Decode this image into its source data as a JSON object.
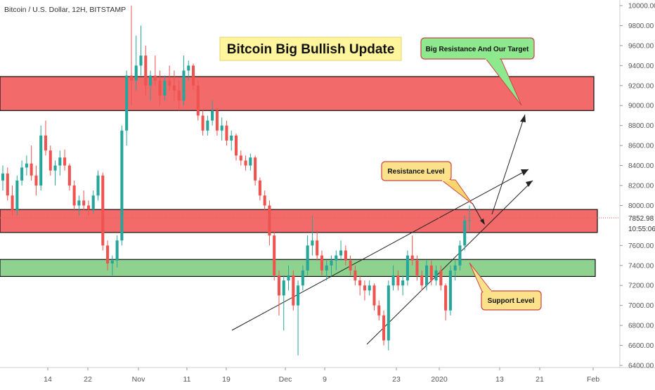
{
  "header": {
    "symbol_line": "Bitcoin / U.S. Dollar, 12H, BITSTAMP"
  },
  "colors": {
    "up": "#26a69a",
    "down": "#ef5350",
    "resistance_zone_fill": "#f36a6a",
    "support_zone_fill": "#8fd18f",
    "title_box_fill": "#fff59d",
    "callout_red_fill": "#f8d56e",
    "callout_green_fill": "#8ee88e",
    "price_tag": "#ef5350",
    "axis_text": "#555555"
  },
  "annotations": {
    "title": "Bitcoin Big Bullish Update",
    "target_callout": "Big Resistance And Our Target",
    "resistance_callout": "Resistance Level",
    "support_callout": "Support Level"
  },
  "price_axis": {
    "ticks": [
      "10000.00",
      "9800.00",
      "9600.00",
      "9400.00",
      "9200.00",
      "9000.00",
      "8800.00",
      "8600.00",
      "8400.00",
      "8200.00",
      "8000.00",
      "7600.00",
      "7400.00",
      "7200.00",
      "7000.00",
      "6800.00",
      "6600.00",
      "6400.00"
    ],
    "last_price": "7852.98",
    "countdown": "10:55:06"
  },
  "time_axis": {
    "ticks": [
      "14",
      "22",
      "Nov",
      "11",
      "19",
      "Dec",
      "9",
      "23",
      "2020",
      "13",
      "21",
      "Feb"
    ]
  },
  "chart_data": {
    "type": "candlestick",
    "title": "Bitcoin Big Bullish Update",
    "symbol": "Bitcoin / U.S. Dollar, 12H, BITSTAMP",
    "ylim": [
      6300,
      10100
    ],
    "y_ticks": [
      10000,
      9800,
      9600,
      9400,
      9200,
      9000,
      8800,
      8600,
      8400,
      8200,
      8000,
      7600,
      7400,
      7200,
      7000,
      6800,
      6600,
      6400
    ],
    "x_tick_labels": [
      "14",
      "22",
      "Nov",
      "11",
      "19",
      "Dec",
      "9",
      "23",
      "2020",
      "13",
      "21",
      "Feb"
    ],
    "last_price": 7852.98,
    "zones": [
      {
        "kind": "resistance",
        "from": 8950,
        "to": 9290
      },
      {
        "kind": "resistance",
        "from": 7730,
        "to": 7960
      },
      {
        "kind": "support",
        "from": 7290,
        "to": 7460
      }
    ],
    "candles": [
      [
        8250,
        8400,
        8150,
        8320
      ],
      [
        8320,
        8380,
        8050,
        8100
      ],
      [
        8100,
        8200,
        7900,
        7950
      ],
      [
        7950,
        8300,
        7900,
        8250
      ],
      [
        8250,
        8450,
        8200,
        8380
      ],
      [
        8380,
        8500,
        8300,
        8420
      ],
      [
        8420,
        8600,
        8250,
        8300
      ],
      [
        8300,
        8400,
        8100,
        8200
      ],
      [
        8200,
        8800,
        8150,
        8700
      ],
      [
        8700,
        8850,
        8500,
        8550
      ],
      [
        8550,
        8600,
        8300,
        8350
      ],
      [
        8350,
        8450,
        8200,
        8400
      ],
      [
        8400,
        8550,
        8300,
        8480
      ],
      [
        8480,
        8560,
        8350,
        8400
      ],
      [
        8400,
        8420,
        8150,
        8200
      ],
      [
        8200,
        8250,
        7950,
        8000
      ],
      [
        8000,
        8100,
        7900,
        8050
      ],
      [
        8050,
        8150,
        7950,
        8000
      ],
      [
        8000,
        8050,
        7900,
        7960
      ],
      [
        7960,
        8150,
        7920,
        8100
      ],
      [
        8100,
        8350,
        8050,
        8300
      ],
      [
        8300,
        8330,
        7550,
        7600
      ],
      [
        7600,
        7650,
        7350,
        7420
      ],
      [
        7420,
        7500,
        7300,
        7450
      ],
      [
        7450,
        7700,
        7380,
        7650
      ],
      [
        7650,
        8800,
        7600,
        8750
      ],
      [
        8750,
        9350,
        8600,
        9300
      ],
      [
        9300,
        10000,
        9000,
        9250
      ],
      [
        9250,
        9700,
        9150,
        9400
      ],
      [
        9400,
        9800,
        9300,
        9500
      ],
      [
        9500,
        9600,
        9100,
        9200
      ],
      [
        9200,
        9350,
        9050,
        9300
      ],
      [
        9300,
        9500,
        9200,
        9250
      ],
      [
        9250,
        9350,
        9000,
        9100
      ],
      [
        9100,
        9300,
        9050,
        9250
      ],
      [
        9250,
        9400,
        9150,
        9200
      ],
      [
        9200,
        9350,
        9050,
        9150
      ],
      [
        9150,
        9250,
        8950,
        9050
      ],
      [
        9050,
        9500,
        9000,
        9350
      ],
      [
        9350,
        9450,
        9250,
        9400
      ],
      [
        9400,
        9420,
        9150,
        9200
      ],
      [
        9200,
        9250,
        8850,
        8900
      ],
      [
        8900,
        8950,
        8700,
        8750
      ],
      [
        8750,
        8900,
        8700,
        8850
      ],
      [
        8850,
        9050,
        8800,
        8950
      ],
      [
        8950,
        8980,
        8700,
        8750
      ],
      [
        8750,
        8880,
        8650,
        8800
      ],
      [
        8800,
        8850,
        8600,
        8650
      ],
      [
        8650,
        8750,
        8550,
        8700
      ],
      [
        8700,
        8720,
        8450,
        8500
      ],
      [
        8500,
        8550,
        8400,
        8450
      ],
      [
        8450,
        8500,
        8350,
        8400
      ],
      [
        8400,
        8520,
        8350,
        8480
      ],
      [
        8480,
        8500,
        8200,
        8250
      ],
      [
        8250,
        8280,
        8050,
        8100
      ],
      [
        8100,
        8150,
        7950,
        8000
      ],
      [
        8000,
        8050,
        7600,
        7700
      ],
      [
        7700,
        7750,
        7250,
        7300
      ],
      [
        7300,
        7350,
        6900,
        7100
      ],
      [
        7100,
        7300,
        6750,
        7250
      ],
      [
        7250,
        7400,
        7150,
        7300
      ],
      [
        7300,
        7350,
        6950,
        7000
      ],
      [
        7000,
        7250,
        6500,
        7200
      ],
      [
        7200,
        7400,
        7150,
        7350
      ],
      [
        7350,
        7700,
        7300,
        7600
      ],
      [
        7600,
        7900,
        7500,
        7650
      ],
      [
        7650,
        7750,
        7450,
        7500
      ],
      [
        7500,
        7550,
        7300,
        7350
      ],
      [
        7350,
        7450,
        7250,
        7400
      ],
      [
        7400,
        7500,
        7300,
        7450
      ],
      [
        7450,
        7550,
        7350,
        7500
      ],
      [
        7500,
        7650,
        7450,
        7550
      ],
      [
        7550,
        7600,
        7400,
        7450
      ],
      [
        7450,
        7500,
        7300,
        7350
      ],
      [
        7350,
        7400,
        7200,
        7250
      ],
      [
        7250,
        7300,
        7100,
        7200
      ],
      [
        7200,
        7250,
        7050,
        7150
      ],
      [
        7150,
        7250,
        7100,
        7200
      ],
      [
        7200,
        7220,
        6950,
        7000
      ],
      [
        7000,
        7050,
        6850,
        6900
      ],
      [
        6900,
        6950,
        6600,
        6650
      ],
      [
        6650,
        7250,
        6550,
        7200
      ],
      [
        7200,
        7400,
        7150,
        7300
      ],
      [
        7300,
        7350,
        7150,
        7200
      ],
      [
        7200,
        7300,
        7100,
        7250
      ],
      [
        7250,
        7550,
        7200,
        7500
      ],
      [
        7500,
        7700,
        7400,
        7450
      ],
      [
        7450,
        7500,
        7250,
        7300
      ],
      [
        7300,
        7350,
        7150,
        7200
      ],
      [
        7200,
        7450,
        7150,
        7400
      ],
      [
        7400,
        7450,
        7200,
        7250
      ],
      [
        7250,
        7400,
        7200,
        7350
      ],
      [
        7350,
        7400,
        7150,
        7200
      ],
      [
        7200,
        7220,
        6850,
        6950
      ],
      [
        6950,
        7400,
        6900,
        7350
      ],
      [
        7350,
        7450,
        7250,
        7400
      ],
      [
        7400,
        7650,
        7350,
        7600
      ],
      [
        7600,
        7900,
        7550,
        7850
      ],
      [
        7850,
        8000,
        7750,
        7853
      ]
    ]
  }
}
